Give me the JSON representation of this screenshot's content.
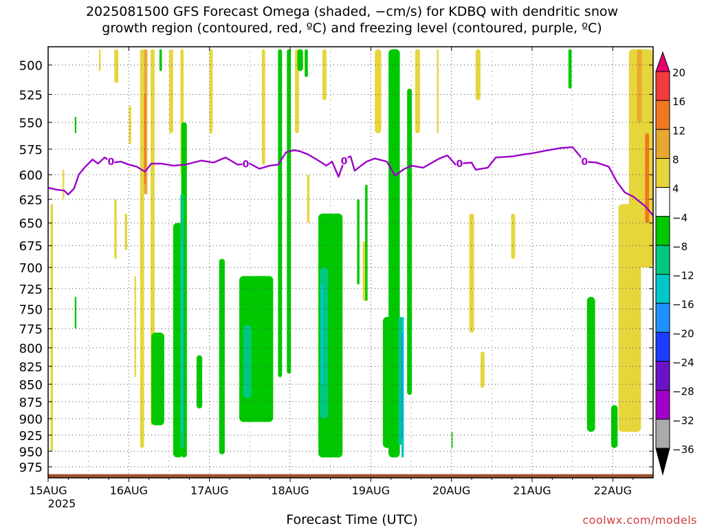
{
  "title_line1": "2025081500 GFS Forecast Omega (shaded, −cm/s) for KDBQ with dendritic snow",
  "title_line2": "growth region (contoured, red, ºC) and freezing level (contoured, purple, ºC)",
  "x_axis_label": "Forecast Time (UTC)",
  "credit": "coolwx.com/models",
  "chart_data": {
    "type": "heatmap",
    "title": "2025081500 GFS Forecast Omega (shaded, −cm/s) for KDBQ with dendritic snow growth region (contoured, red, ºC) and freezing level (contoured, purple, ºC)",
    "xlabel": "Forecast Time (UTC)",
    "ylabel": "",
    "x_range_days": [
      0,
      7.5
    ],
    "x_ticks": [
      {
        "day": 0,
        "label": "15AUG",
        "sub": "2025"
      },
      {
        "day": 1,
        "label": "16AUG"
      },
      {
        "day": 2,
        "label": "17AUG"
      },
      {
        "day": 3,
        "label": "18AUG"
      },
      {
        "day": 4,
        "label": "19AUG"
      },
      {
        "day": 5,
        "label": "20AUG"
      },
      {
        "day": 6,
        "label": "21AUG"
      },
      {
        "day": 7,
        "label": "22AUG"
      }
    ],
    "y_range_hpa": [
      485,
      993
    ],
    "y_ticks": [
      500,
      525,
      550,
      575,
      600,
      625,
      650,
      675,
      700,
      725,
      750,
      775,
      800,
      825,
      850,
      875,
      900,
      925,
      950,
      975
    ],
    "y_scale": "log-pressure",
    "grid": true,
    "colorbar": {
      "ticks": [
        "20",
        "16",
        "12",
        "8",
        "4",
        "−4",
        "−8",
        "−12",
        "−16",
        "−20",
        "−24",
        "−28",
        "−32",
        "−36"
      ],
      "bands": [
        {
          "range": [
            16,
            20
          ],
          "color": "#f03c3c"
        },
        {
          "range": [
            12,
            16
          ],
          "color": "#f07820"
        },
        {
          "range": [
            8,
            12
          ],
          "color": "#e8a830"
        },
        {
          "range": [
            4,
            8
          ],
          "color": "#e6d63c"
        },
        {
          "range": [
            -4,
            4
          ],
          "color": "#ffffff"
        },
        {
          "range": [
            -8,
            -4
          ],
          "color": "#00c800"
        },
        {
          "range": [
            -12,
            -8
          ],
          "color": "#00c880"
        },
        {
          "range": [
            -16,
            -12
          ],
          "color": "#00c8c8"
        },
        {
          "range": [
            -20,
            -16
          ],
          "color": "#1e90ff"
        },
        {
          "range": [
            -24,
            -20
          ],
          "color": "#1e3cff"
        },
        {
          "range": [
            -28,
            -24
          ],
          "color": "#6a14c8"
        },
        {
          "range": [
            -32,
            -28
          ],
          "color": "#a000c8"
        },
        {
          "range": [
            -36,
            -32
          ],
          "color": "#aaaaaa"
        }
      ],
      "top_arrow_color": "#e6006e",
      "bottom_arrow_color": "#000000"
    },
    "freezing_level_color": "#9b00c8",
    "freezing_level_label": "0",
    "freezing_level_hpa": [
      [
        0.0,
        613
      ],
      [
        0.1,
        615
      ],
      [
        0.2,
        616
      ],
      [
        0.25,
        620
      ],
      [
        0.32,
        614
      ],
      [
        0.38,
        600
      ],
      [
        0.45,
        593
      ],
      [
        0.55,
        585
      ],
      [
        0.62,
        589
      ],
      [
        0.7,
        583
      ],
      [
        0.8,
        588
      ],
      [
        0.9,
        587
      ],
      [
        1.0,
        590
      ],
      [
        1.1,
        592
      ],
      [
        1.2,
        597
      ],
      [
        1.28,
        589
      ],
      [
        1.4,
        589
      ],
      [
        1.55,
        591
      ],
      [
        1.7,
        590
      ],
      [
        1.9,
        586
      ],
      [
        2.05,
        588
      ],
      [
        2.2,
        583
      ],
      [
        2.35,
        590
      ],
      [
        2.5,
        589
      ],
      [
        2.62,
        594
      ],
      [
        2.75,
        591
      ],
      [
        2.85,
        590
      ],
      [
        2.95,
        578
      ],
      [
        3.05,
        576
      ],
      [
        3.12,
        577
      ],
      [
        3.22,
        580
      ],
      [
        3.35,
        586
      ],
      [
        3.45,
        591
      ],
      [
        3.52,
        587
      ],
      [
        3.6,
        602
      ],
      [
        3.68,
        584
      ],
      [
        3.75,
        582
      ],
      [
        3.8,
        596
      ],
      [
        3.88,
        591
      ],
      [
        3.95,
        587
      ],
      [
        4.05,
        584
      ],
      [
        4.2,
        587
      ],
      [
        4.3,
        601
      ],
      [
        4.4,
        595
      ],
      [
        4.5,
        591
      ],
      [
        4.65,
        593
      ],
      [
        4.85,
        584
      ],
      [
        4.95,
        581
      ],
      [
        5.05,
        590
      ],
      [
        5.1,
        589
      ],
      [
        5.25,
        588
      ],
      [
        5.3,
        595
      ],
      [
        5.45,
        593
      ],
      [
        5.55,
        583
      ],
      [
        5.75,
        582
      ],
      [
        5.9,
        580
      ],
      [
        6.0,
        579
      ],
      [
        6.2,
        576
      ],
      [
        6.35,
        574
      ],
      [
        6.5,
        573
      ],
      [
        6.65,
        587
      ],
      [
        6.8,
        588
      ],
      [
        6.95,
        592
      ],
      [
        7.05,
        607
      ],
      [
        7.15,
        618
      ],
      [
        7.25,
        622
      ],
      [
        7.4,
        632
      ],
      [
        7.5,
        642
      ]
    ],
    "omega_regions": [
      {
        "band": "4 to 8",
        "day": 0.03,
        "width": 0.03,
        "top_hpa": 630,
        "bottom_hpa": 950
      },
      {
        "band": "4 to 8",
        "day": 0.18,
        "width": 0.02,
        "top_hpa": 595,
        "bottom_hpa": 625
      },
      {
        "band": "4 to 8",
        "day": 0.63,
        "width": 0.02,
        "top_hpa": 487,
        "bottom_hpa": 505
      },
      {
        "band": "4 to 8",
        "day": 0.82,
        "width": 0.05,
        "top_hpa": 487,
        "bottom_hpa": 515
      },
      {
        "band": "4 to 8",
        "day": 0.82,
        "width": 0.03,
        "top_hpa": 625,
        "bottom_hpa": 690
      },
      {
        "band": "4 to 8",
        "day": 0.95,
        "width": 0.03,
        "top_hpa": 640,
        "bottom_hpa": 680
      },
      {
        "band": "4 to 8",
        "day": 1.0,
        "width": 0.03,
        "top_hpa": 535,
        "bottom_hpa": 570
      },
      {
        "band": "4 to 8",
        "day": 1.07,
        "width": 0.02,
        "top_hpa": 710,
        "bottom_hpa": 840
      },
      {
        "band": "4 to 8",
        "day": 1.14,
        "width": 0.05,
        "top_hpa": 487,
        "bottom_hpa": 945
      },
      {
        "band": "8 to 12",
        "day": 1.19,
        "width": 0.04,
        "top_hpa": 487,
        "bottom_hpa": 620
      },
      {
        "band": "12 to 16",
        "day": 1.19,
        "width": 0.02,
        "top_hpa": 525,
        "bottom_hpa": 610
      },
      {
        "band": "4 to 8",
        "day": 1.27,
        "width": 0.05,
        "top_hpa": 487,
        "bottom_hpa": 910
      },
      {
        "band": "4 to 8",
        "day": 1.5,
        "width": 0.05,
        "top_hpa": 487,
        "bottom_hpa": 560
      },
      {
        "band": "4 to 8",
        "day": 1.64,
        "width": 0.04,
        "top_hpa": 487,
        "bottom_hpa": 600
      },
      {
        "band": "4 to 8",
        "day": 2.0,
        "width": 0.04,
        "top_hpa": 487,
        "bottom_hpa": 560
      },
      {
        "band": "4 to 8",
        "day": 2.65,
        "width": 0.04,
        "top_hpa": 487,
        "bottom_hpa": 590
      },
      {
        "band": "4 to 8",
        "day": 3.06,
        "width": 0.05,
        "top_hpa": 487,
        "bottom_hpa": 560
      },
      {
        "band": "4 to 8",
        "day": 3.21,
        "width": 0.03,
        "top_hpa": 600,
        "bottom_hpa": 650
      },
      {
        "band": "4 to 8",
        "day": 3.4,
        "width": 0.05,
        "top_hpa": 487,
        "bottom_hpa": 530
      },
      {
        "band": "4 to 8",
        "day": 3.55,
        "width": 0.03,
        "top_hpa": 870,
        "bottom_hpa": 960
      },
      {
        "band": "4 to 8",
        "day": 3.9,
        "width": 0.04,
        "top_hpa": 670,
        "bottom_hpa": 740
      },
      {
        "band": "4 to 8",
        "day": 4.05,
        "width": 0.08,
        "top_hpa": 487,
        "bottom_hpa": 560
      },
      {
        "band": "4 to 8",
        "day": 4.55,
        "width": 0.06,
        "top_hpa": 487,
        "bottom_hpa": 560
      },
      {
        "band": "4 to 8",
        "day": 4.82,
        "width": 0.02,
        "top_hpa": 487,
        "bottom_hpa": 560
      },
      {
        "band": "4 to 8",
        "day": 5.22,
        "width": 0.06,
        "top_hpa": 640,
        "bottom_hpa": 780
      },
      {
        "band": "4 to 8",
        "day": 5.3,
        "width": 0.06,
        "top_hpa": 487,
        "bottom_hpa": 530
      },
      {
        "band": "4 to 8",
        "day": 5.36,
        "width": 0.05,
        "top_hpa": 805,
        "bottom_hpa": 855
      },
      {
        "band": "4 to 8",
        "day": 5.74,
        "width": 0.05,
        "top_hpa": 640,
        "bottom_hpa": 690
      },
      {
        "band": "4 to 8",
        "day": 7.07,
        "width": 0.28,
        "top_hpa": 630,
        "bottom_hpa": 920
      },
      {
        "band": "4 to 8",
        "day": 7.2,
        "width": 0.3,
        "top_hpa": 487,
        "bottom_hpa": 700
      },
      {
        "band": "8 to 12",
        "day": 7.3,
        "width": 0.06,
        "top_hpa": 487,
        "bottom_hpa": 550
      },
      {
        "band": "12 to 16",
        "day": 7.4,
        "width": 0.05,
        "top_hpa": 560,
        "bottom_hpa": 650
      },
      {
        "band": "-8 to -4",
        "day": 0.33,
        "width": 0.02,
        "top_hpa": 545,
        "bottom_hpa": 560
      },
      {
        "band": "-8 to -4",
        "day": 0.33,
        "width": 0.02,
        "top_hpa": 735,
        "bottom_hpa": 775
      },
      {
        "band": "-8 to -4",
        "day": 1.28,
        "width": 0.16,
        "top_hpa": 780,
        "bottom_hpa": 910
      },
      {
        "band": "-8 to -4",
        "day": 1.38,
        "width": 0.03,
        "top_hpa": 487,
        "bottom_hpa": 505
      },
      {
        "band": "-8 to -4",
        "day": 1.55,
        "width": 0.12,
        "top_hpa": 650,
        "bottom_hpa": 960
      },
      {
        "band": "-8 to -4",
        "day": 1.65,
        "width": 0.07,
        "top_hpa": 550,
        "bottom_hpa": 960
      },
      {
        "band": "-12 to -8",
        "day": 1.64,
        "width": 0.04,
        "top_hpa": 620,
        "bottom_hpa": 945
      },
      {
        "band": "-16 to -12",
        "day": 1.65,
        "width": 0.02,
        "top_hpa": 670,
        "bottom_hpa": 920
      },
      {
        "band": "-8 to -4",
        "day": 1.84,
        "width": 0.07,
        "top_hpa": 810,
        "bottom_hpa": 885
      },
      {
        "band": "-8 to -4",
        "day": 2.12,
        "width": 0.07,
        "top_hpa": 690,
        "bottom_hpa": 955
      },
      {
        "band": "-8 to -4",
        "day": 2.37,
        "width": 0.42,
        "top_hpa": 710,
        "bottom_hpa": 905
      },
      {
        "band": "-12 to -8",
        "day": 2.42,
        "width": 0.1,
        "top_hpa": 770,
        "bottom_hpa": 870
      },
      {
        "band": "-8 to -4",
        "day": 2.85,
        "width": 0.05,
        "top_hpa": 487,
        "bottom_hpa": 840
      },
      {
        "band": "-8 to -4",
        "day": 2.96,
        "width": 0.05,
        "top_hpa": 487,
        "bottom_hpa": 835
      },
      {
        "band": "-8 to -4",
        "day": 3.09,
        "width": 0.07,
        "top_hpa": 487,
        "bottom_hpa": 505
      },
      {
        "band": "-8 to -4",
        "day": 3.18,
        "width": 0.04,
        "top_hpa": 487,
        "bottom_hpa": 510
      },
      {
        "band": "-8 to -4",
        "day": 3.35,
        "width": 0.3,
        "top_hpa": 640,
        "bottom_hpa": 960
      },
      {
        "band": "-12 to -8",
        "day": 3.37,
        "width": 0.1,
        "top_hpa": 700,
        "bottom_hpa": 900
      },
      {
        "band": "-16 to -12",
        "day": 3.38,
        "width": 0.03,
        "top_hpa": 720,
        "bottom_hpa": 850
      },
      {
        "band": "-8 to -4",
        "day": 3.83,
        "width": 0.03,
        "top_hpa": 625,
        "bottom_hpa": 720
      },
      {
        "band": "-8 to -4",
        "day": 3.93,
        "width": 0.03,
        "top_hpa": 610,
        "bottom_hpa": 740
      },
      {
        "band": "-8 to -4",
        "day": 4.15,
        "width": 0.12,
        "top_hpa": 760,
        "bottom_hpa": 945
      },
      {
        "band": "-8 to -4",
        "day": 4.22,
        "width": 0.14,
        "top_hpa": 487,
        "bottom_hpa": 960
      },
      {
        "band": "-8 to -4",
        "day": 4.45,
        "width": 0.06,
        "top_hpa": 520,
        "bottom_hpa": 865
      },
      {
        "band": "-12 to -8",
        "day": 4.34,
        "width": 0.05,
        "top_hpa": 760,
        "bottom_hpa": 940
      },
      {
        "band": "-16 to -12",
        "day": 4.38,
        "width": 0.03,
        "top_hpa": 760,
        "bottom_hpa": 960
      },
      {
        "band": "-20 to -16",
        "day": 4.38,
        "width": 0.015,
        "top_hpa": 780,
        "bottom_hpa": 930
      },
      {
        "band": "-8 to -4",
        "day": 5.0,
        "width": 0.015,
        "top_hpa": 920,
        "bottom_hpa": 945
      },
      {
        "band": "-8 to -4",
        "day": 6.45,
        "width": 0.04,
        "top_hpa": 487,
        "bottom_hpa": 520
      },
      {
        "band": "-8 to -4",
        "day": 6.68,
        "width": 0.1,
        "top_hpa": 735,
        "bottom_hpa": 920
      },
      {
        "band": "-8 to -4",
        "day": 6.98,
        "width": 0.08,
        "top_hpa": 880,
        "bottom_hpa": 945
      }
    ],
    "surface": {
      "color": "#a0522d",
      "bottom_hpa": 993,
      "top_hpa_typical": 987
    }
  }
}
